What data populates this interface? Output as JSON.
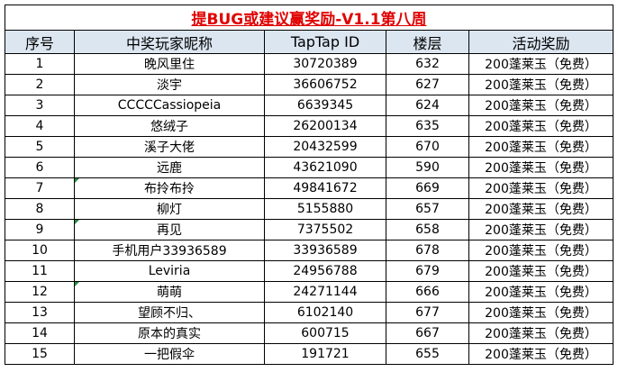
{
  "table": {
    "title": "提BUG或建议赢奖励-V1.1第八周",
    "header": [
      "序号",
      "中奖玩家昵称",
      "TapTap ID",
      "楼层",
      "活动奖励"
    ],
    "rows": [
      [
        "1",
        "晚风里住",
        "30720389",
        "632",
        "200蓬莱玉（免费）"
      ],
      [
        "2",
        "淡宇",
        "36606752",
        "627",
        "200蓬莱玉（免费）"
      ],
      [
        "3",
        "CCCCCassiopeia",
        "6639345",
        "624",
        "200蓬莱玉（免费）"
      ],
      [
        "4",
        "悠绒子",
        "26200134",
        "635",
        "200蓬莱玉（免费）"
      ],
      [
        "5",
        "溪子大佬",
        "20432599",
        "670",
        "200蓬莱玉（免费）"
      ],
      [
        "6",
        "远鹿",
        "43621090",
        "590",
        "200蓬莱玉（免费）"
      ],
      [
        "7",
        "布拎布拎",
        "49841672",
        "669",
        "200蓬莱玉（免费）"
      ],
      [
        "8",
        "柳灯",
        "5155880",
        "657",
        "200蓬莱玉（免费）"
      ],
      [
        "9",
        "再见",
        "7375502",
        "658",
        "200蓬莱玉（免费）"
      ],
      [
        "10",
        "手机用户33936589",
        "33936589",
        "678",
        "200蓬莱玉（免费）"
      ],
      [
        "11",
        "Leviria",
        "24956788",
        "679",
        "200蓬莱玉（免费）"
      ],
      [
        "12",
        "萌萌",
        "24271144",
        "666",
        "200蓬莱玉（免费）"
      ],
      [
        "13",
        "望顾不归、",
        "6102140",
        "677",
        "200蓬莱玉（免费）"
      ],
      [
        "14",
        "原本的真实",
        "600715",
        "667",
        "200蓬莱玉（免费）"
      ],
      [
        "15",
        "一把假伞",
        "191721",
        "655",
        "200蓬莱玉（免费）"
      ]
    ]
  }
}
